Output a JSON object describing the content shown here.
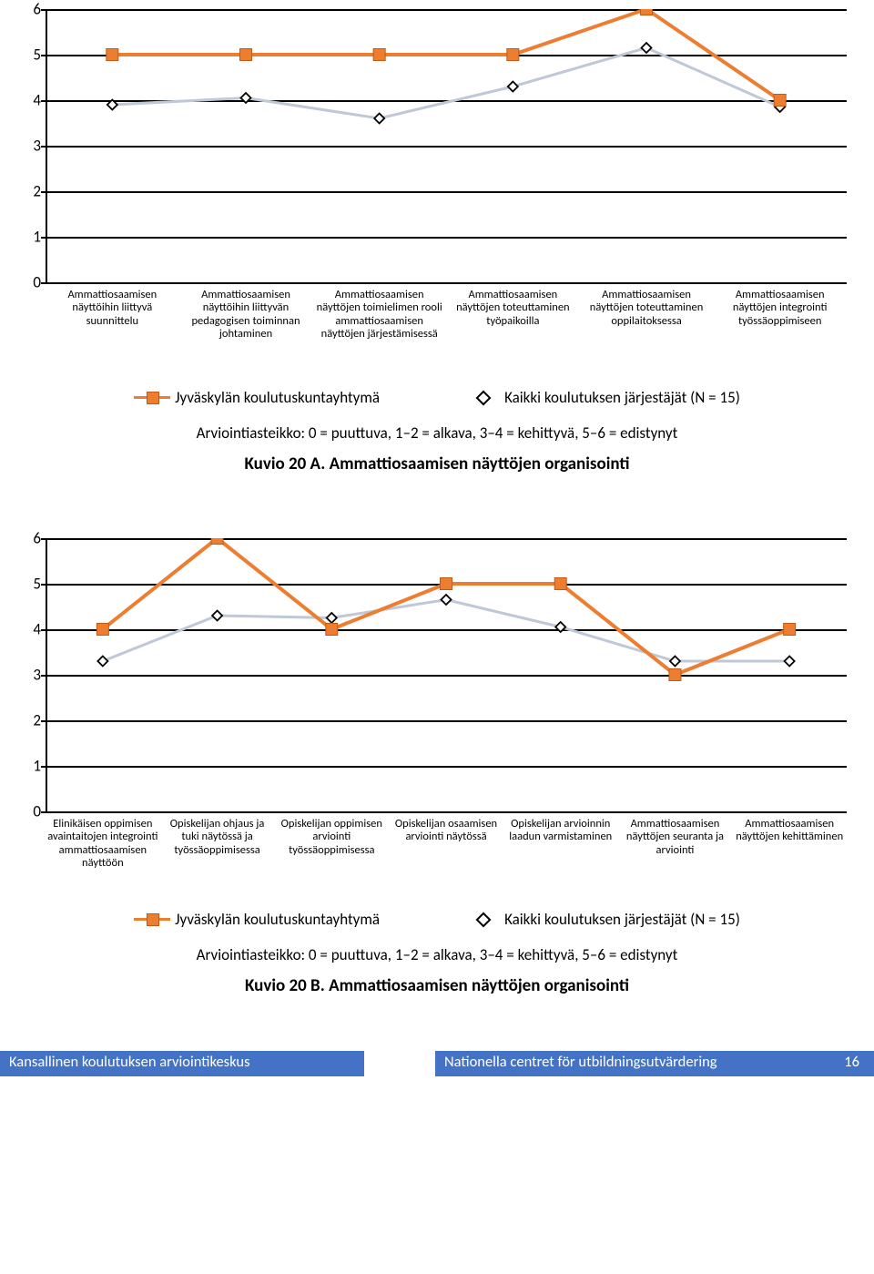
{
  "colors": {
    "series1_line": "#ed7d31",
    "series1_marker_border": "#c25a13",
    "series2_line": "#bfc8d6",
    "series2_marker_border": "#000000",
    "series2_marker_fill": "#ffffff",
    "gridline": "#000000",
    "background": "#ffffff",
    "footer_bg": "#4472c4",
    "footer_text": "#ffffff"
  },
  "chartA": {
    "type": "line",
    "ylim": [
      0,
      6
    ],
    "ytick_step": 1,
    "line_width_s1": 4,
    "line_width_s2": 3,
    "marker_size_s1": 13,
    "marker_size_s2": 11,
    "categories": [
      "Ammattiosaamisen näyttöihin liittyvä suunnittelu",
      "Ammattiosaamisen näyttöihin liittyvän pedagogisen toiminnan johtaminen",
      "Ammattiosaamisen näyttöjen toimielimen rooli ammattiosaamisen näyttöjen järjestämisessä",
      "Ammattiosaamisen näyttöjen toteuttaminen työpaikoilla",
      "Ammattiosaamisen näyttöjen toteuttaminen oppilaitoksessa",
      "Ammattiosaamisen näyttöjen integrointi työssäoppimiseen"
    ],
    "series1": {
      "label": "Jyväskylän koulutuskuntayhtymä",
      "values": [
        5,
        5,
        5,
        5,
        6,
        4
      ]
    },
    "series2": {
      "label": "Kaikki koulutuksen järjestäjät (N = 15)",
      "values": [
        3.9,
        4.05,
        3.6,
        4.3,
        5.15,
        3.85
      ]
    },
    "scale_text": "Arviointiasteikko: 0 = puuttuva, 1–2 = alkava, 3–4 = kehittyvä, 5–6 = edistynyt",
    "title": "Kuvio 20 A. Ammattiosaamisen näyttöjen organisointi"
  },
  "chartB": {
    "type": "line",
    "ylim": [
      0,
      6
    ],
    "ytick_step": 1,
    "line_width_s1": 4,
    "line_width_s2": 3,
    "marker_size_s1": 13,
    "marker_size_s2": 11,
    "categories": [
      "Elinikäisen oppimisen avaintaitojen integrointi ammattiosaamisen näyttöön",
      "Opiskelijan ohjaus ja tuki näytössä ja työssäoppimisessa",
      "Opiskelijan oppimisen arviointi työssäoppimisessa",
      "Opiskelijan osaamisen arviointi näytössä",
      "Opiskelijan arvioinnin laadun varmistaminen",
      "Ammattiosaamisen näyttöjen seuranta ja arviointi",
      "Ammattiosaamisen näyttöjen kehittäminen"
    ],
    "series1": {
      "label": "Jyväskylän koulutuskuntayhtymä",
      "values": [
        4,
        6,
        4,
        5,
        5,
        3,
        4
      ]
    },
    "series2": {
      "label": "Kaikki koulutuksen järjestäjät (N = 15)",
      "values": [
        3.3,
        4.3,
        4.25,
        4.65,
        4.05,
        3.3,
        3.3
      ]
    },
    "scale_text": "Arviointiasteikko: 0 = puuttuva, 1–2 = alkava, 3–4 = kehittyvä, 5–6 = edistynyt",
    "title": "Kuvio 20 B. Ammattiosaamisen näyttöjen organisointi"
  },
  "footer": {
    "left": "Kansallinen koulutuksen arviointikeskus",
    "right": "Nationella centret för utbildningsutvärdering",
    "page": "16"
  }
}
